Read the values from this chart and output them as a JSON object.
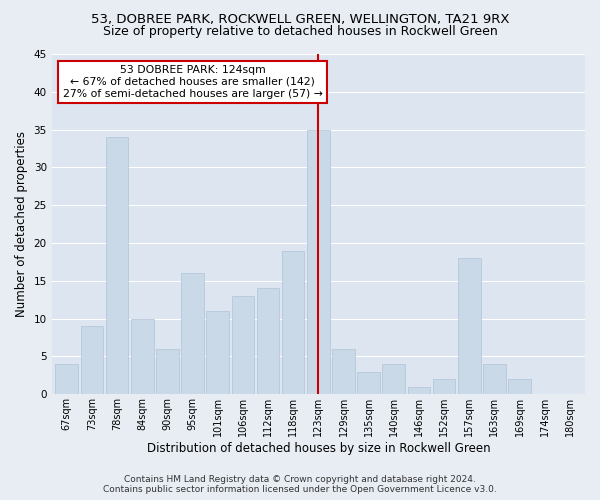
{
  "title": "53, DOBREE PARK, ROCKWELL GREEN, WELLINGTON, TA21 9RX",
  "subtitle": "Size of property relative to detached houses in Rockwell Green",
  "xlabel": "Distribution of detached houses by size in Rockwell Green",
  "ylabel": "Number of detached properties",
  "footer1": "Contains HM Land Registry data © Crown copyright and database right 2024.",
  "footer2": "Contains public sector information licensed under the Open Government Licence v3.0.",
  "categories": [
    "67sqm",
    "73sqm",
    "78sqm",
    "84sqm",
    "90sqm",
    "95sqm",
    "101sqm",
    "106sqm",
    "112sqm",
    "118sqm",
    "123sqm",
    "129sqm",
    "135sqm",
    "140sqm",
    "146sqm",
    "152sqm",
    "157sqm",
    "163sqm",
    "169sqm",
    "174sqm",
    "180sqm"
  ],
  "values": [
    4,
    9,
    34,
    10,
    6,
    16,
    11,
    13,
    14,
    19,
    35,
    6,
    3,
    4,
    1,
    2,
    18,
    4,
    2,
    0,
    0
  ],
  "bar_color": "#cad9e8",
  "bar_edge_color": "#b0c4d8",
  "vline_index": 10,
  "vline_color": "#cc0000",
  "annotation_title": "53 DOBREE PARK: 124sqm",
  "annotation_line1": "← 67% of detached houses are smaller (142)",
  "annotation_line2": "27% of semi-detached houses are larger (57) →",
  "annotation_box_color": "#cc0000",
  "ylim": [
    0,
    45
  ],
  "yticks": [
    0,
    5,
    10,
    15,
    20,
    25,
    30,
    35,
    40,
    45
  ],
  "bg_color": "#e8edf4",
  "plot_bg_color": "#dce5f0",
  "grid_color": "#ffffff",
  "title_fontsize": 9.5,
  "subtitle_fontsize": 9,
  "tick_fontsize": 7,
  "ylabel_fontsize": 8.5,
  "xlabel_fontsize": 8.5,
  "footer_fontsize": 6.5
}
